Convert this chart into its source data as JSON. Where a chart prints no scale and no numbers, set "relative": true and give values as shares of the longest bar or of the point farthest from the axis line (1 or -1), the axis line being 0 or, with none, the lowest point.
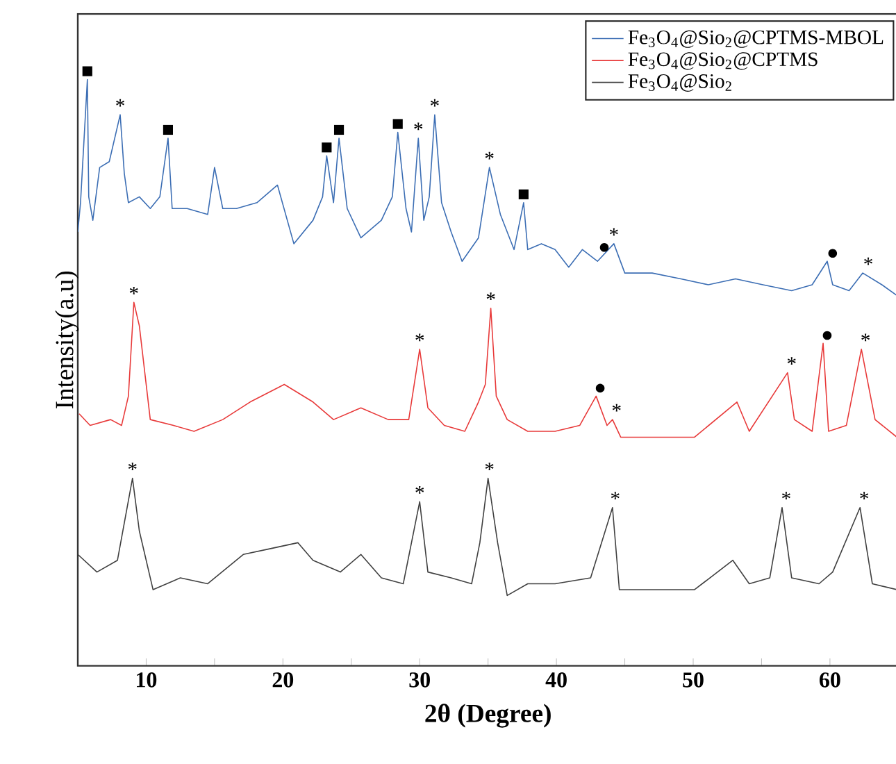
{
  "chart_data": {
    "type": "line",
    "relative": true,
    "xlabel": "**2θ (Degree)**",
    "ylabel": "Intensity(a.u)",
    "xlim": [
      5,
      65
    ],
    "xticks": [
      10,
      {
        "value": 15,
        "label": null
      },
      20,
      {
        "value": 25,
        "label": null
      },
      30,
      {
        "value": 35,
        "label": null
      },
      40,
      {
        "value": 45,
        "label": null
      },
      50,
      {
        "value": 55,
        "label": null
      },
      60
    ],
    "legend": "top right",
    "series": [
      {
        "name": "Fe$_{3}$O$_{4}$@Sio$_{2}$@CPTMS-MBOL",
        "color": "#3c6eb4",
        "x": [
          5.0,
          5.2,
          5.7,
          5.8,
          6.1,
          6.6,
          7.3,
          8.1,
          8.4,
          8.7,
          9.5,
          10.3,
          11.0,
          11.6,
          11.9,
          13.0,
          14.5,
          15.0,
          15.6,
          16.6,
          18.1,
          19.6,
          20.8,
          22.2,
          22.9,
          23.2,
          23.7,
          24.1,
          24.7,
          25.7,
          27.2,
          28.0,
          28.4,
          29.0,
          29.4,
          29.9,
          30.3,
          30.7,
          31.1,
          31.6,
          32.3,
          33.1,
          34.3,
          35.1,
          35.9,
          36.9,
          37.6,
          37.9,
          38.9,
          39.9,
          40.9,
          41.9,
          43.0,
          44.2,
          45.0,
          47.0,
          49.1,
          51.1,
          53.1,
          55.1,
          57.2,
          58.7,
          59.8,
          60.2,
          61.4,
          62.4,
          63.8,
          65.0
        ],
        "values": [
          0.74,
          0.79,
          1.0,
          0.8,
          0.76,
          0.85,
          0.86,
          0.94,
          0.84,
          0.79,
          0.8,
          0.78,
          0.8,
          0.9,
          0.78,
          0.78,
          0.77,
          0.85,
          0.78,
          0.78,
          0.79,
          0.82,
          0.72,
          0.76,
          0.8,
          0.87,
          0.79,
          0.9,
          0.78,
          0.73,
          0.76,
          0.8,
          0.91,
          0.78,
          0.74,
          0.9,
          0.76,
          0.8,
          0.94,
          0.79,
          0.74,
          0.69,
          0.73,
          0.85,
          0.77,
          0.71,
          0.79,
          0.71,
          0.72,
          0.71,
          0.68,
          0.71,
          0.69,
          0.72,
          0.67,
          0.67,
          0.66,
          0.65,
          0.66,
          0.65,
          0.64,
          0.65,
          0.69,
          0.65,
          0.64,
          0.67,
          0.65,
          0.63
        ]
      },
      {
        "name": "Fe$_{3}$O$_{4}$@Sio$_{2}$@CPTMS",
        "color": "#e83a3a",
        "x": [
          5.1,
          5.9,
          7.4,
          8.2,
          8.7,
          9.1,
          9.5,
          9.9,
          10.3,
          12.0,
          13.5,
          15.6,
          17.6,
          20.1,
          22.2,
          23.7,
          25.7,
          27.7,
          29.2,
          30.0,
          30.6,
          31.8,
          33.3,
          34.3,
          34.8,
          35.2,
          35.6,
          36.4,
          37.9,
          39.9,
          41.7,
          42.9,
          43.7,
          44.1,
          44.7,
          47.0,
          50.1,
          53.2,
          54.1,
          56.9,
          57.4,
          58.7,
          59.5,
          59.9,
          61.2,
          62.3,
          63.3,
          64.9
        ],
        "values": [
          0.43,
          0.41,
          0.42,
          0.41,
          0.46,
          0.62,
          0.58,
          0.5,
          0.42,
          0.41,
          0.4,
          0.42,
          0.45,
          0.48,
          0.45,
          0.42,
          0.44,
          0.42,
          0.42,
          0.54,
          0.44,
          0.41,
          0.4,
          0.45,
          0.48,
          0.61,
          0.46,
          0.42,
          0.4,
          0.4,
          0.41,
          0.46,
          0.41,
          0.42,
          0.39,
          0.39,
          0.39,
          0.45,
          0.4,
          0.5,
          0.42,
          0.4,
          0.55,
          0.4,
          0.41,
          0.54,
          0.42,
          0.39
        ]
      },
      {
        "name": "Fe$_{3}$O$_{4}$@Sio$_{2}$",
        "color": "#404040",
        "x": [
          5.0,
          6.4,
          7.9,
          9.0,
          9.5,
          10.5,
          12.5,
          14.5,
          17.1,
          19.1,
          21.1,
          22.2,
          24.2,
          25.7,
          27.2,
          28.8,
          30.0,
          30.6,
          32.3,
          33.8,
          34.4,
          35.0,
          35.7,
          36.4,
          37.9,
          39.9,
          42.5,
          44.1,
          44.6,
          47.0,
          50.1,
          52.9,
          54.1,
          55.6,
          56.5,
          57.2,
          59.2,
          60.2,
          62.2,
          63.1,
          64.9
        ],
        "values": [
          0.19,
          0.16,
          0.18,
          0.32,
          0.23,
          0.13,
          0.15,
          0.14,
          0.19,
          0.2,
          0.21,
          0.18,
          0.16,
          0.19,
          0.15,
          0.14,
          0.28,
          0.16,
          0.15,
          0.14,
          0.21,
          0.32,
          0.21,
          0.12,
          0.14,
          0.14,
          0.15,
          0.27,
          0.13,
          0.13,
          0.13,
          0.18,
          0.14,
          0.15,
          0.27,
          0.15,
          0.14,
          0.16,
          0.27,
          0.14,
          0.13
        ]
      }
    ],
    "annotations": [
      {
        "text": "■",
        "x": 5.7,
        "y": 1.0
      },
      {
        "text": "*",
        "x": 8.1,
        "y": 0.94
      },
      {
        "text": "■",
        "x": 11.6,
        "y": 0.9
      },
      {
        "text": "■",
        "x": 23.2,
        "y": 0.87
      },
      {
        "text": "■",
        "x": 24.1,
        "y": 0.9
      },
      {
        "text": "■",
        "x": 28.4,
        "y": 0.91
      },
      {
        "text": "*",
        "x": 29.9,
        "y": 0.9
      },
      {
        "text": "*",
        "x": 31.1,
        "y": 0.94
      },
      {
        "text": "*",
        "x": 35.1,
        "y": 0.85
      },
      {
        "text": "■",
        "x": 37.6,
        "y": 0.79
      },
      {
        "text": "●",
        "x": 43.5,
        "y": 0.7
      },
      {
        "text": "*",
        "x": 44.2,
        "y": 0.72
      },
      {
        "text": "●",
        "x": 60.2,
        "y": 0.69
      },
      {
        "text": "*",
        "x": 62.8,
        "y": 0.67
      },
      {
        "text": "*",
        "x": 9.1,
        "y": 0.62
      },
      {
        "text": "*",
        "x": 30.0,
        "y": 0.54
      },
      {
        "text": "*",
        "x": 35.2,
        "y": 0.61
      },
      {
        "text": "●",
        "x": 43.2,
        "y": 0.46
      },
      {
        "text": "*",
        "x": 44.4,
        "y": 0.42
      },
      {
        "text": "*",
        "x": 57.2,
        "y": 0.5
      },
      {
        "text": "●",
        "x": 59.8,
        "y": 0.55
      },
      {
        "text": "*",
        "x": 62.6,
        "y": 0.54
      },
      {
        "text": "*",
        "x": 9.0,
        "y": 0.32
      },
      {
        "text": "*",
        "x": 30.0,
        "y": 0.28
      },
      {
        "text": "*",
        "x": 35.1,
        "y": 0.32
      },
      {
        "text": "*",
        "x": 44.3,
        "y": 0.27
      },
      {
        "text": "*",
        "x": 56.8,
        "y": 0.27
      },
      {
        "text": "*",
        "x": 62.5,
        "y": 0.27
      }
    ]
  }
}
